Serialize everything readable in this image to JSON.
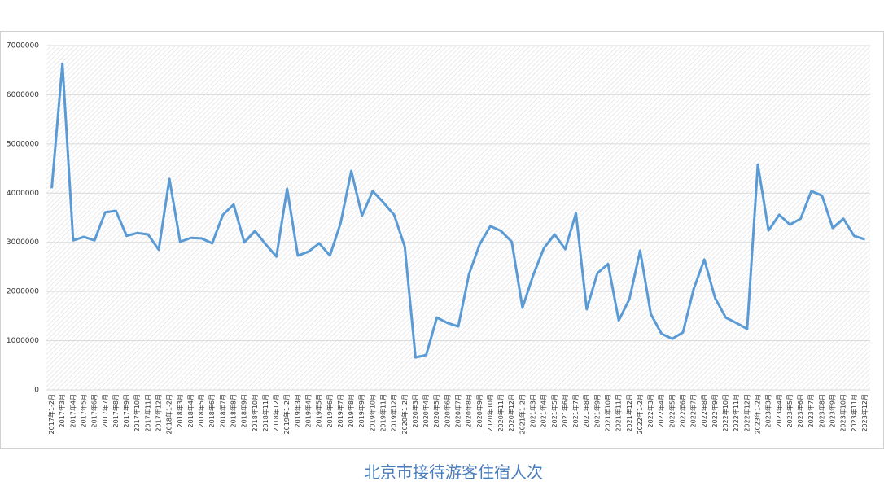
{
  "chart_data": {
    "type": "line",
    "title": "北京市接待游客住宿人次",
    "categories": [
      "2017年1-2月",
      "2017年3月",
      "2017年4月",
      "2017年5月",
      "2017年6月",
      "2017年7月",
      "2017年8月",
      "2017年9月",
      "2017年10月",
      "2017年11月",
      "2017年12月",
      "2018年1-2月",
      "2018年3月",
      "2018年4月",
      "2018年5月",
      "2018年6月",
      "2018年7月",
      "2018年8月",
      "2018年9月",
      "2018年10月",
      "2018年11月",
      "2018年12月",
      "2019年1-2月",
      "2019年3月",
      "2019年4月",
      "2019年5月",
      "2019年6月",
      "2019年7月",
      "2019年8月",
      "2019年9月",
      "2019年10月",
      "2019年11月",
      "2019年12月",
      "2020年1-2月",
      "2020年3月",
      "2020年4月",
      "2020年5月",
      "2020年6月",
      "2020年7月",
      "2020年8月",
      "2020年9月",
      "2020年10月",
      "2020年11月",
      "2020年12月",
      "2021年1-2月",
      "2021年3月",
      "2021年4月",
      "2021年5月",
      "2021年6月",
      "2021年7月",
      "2021年8月",
      "2021年9月",
      "2021年10月",
      "2021年11月",
      "2021年12月",
      "2022年1-2月",
      "2022年3月",
      "2022年4月",
      "2022年5月",
      "2022年6月",
      "2022年7月",
      "2022年8月",
      "2022年9月",
      "2022年10月",
      "2022年11月",
      "2022年12月",
      "2023年1-2月",
      "2023年3月",
      "2023年4月",
      "2023年5月",
      "2023年6月",
      "2023年7月",
      "2023年8月",
      "2023年9月",
      "2023年10月",
      "2023年11月",
      "2023年12月"
    ],
    "values": [
      4100000,
      6630000,
      3040000,
      3110000,
      3040000,
      3610000,
      3640000,
      3130000,
      3190000,
      3160000,
      2850000,
      4290000,
      3010000,
      3090000,
      3080000,
      2980000,
      3560000,
      3770000,
      3000000,
      3230000,
      2960000,
      2710000,
      4090000,
      2730000,
      2810000,
      2980000,
      2730000,
      3390000,
      4450000,
      3540000,
      4040000,
      3810000,
      3560000,
      2910000,
      660000,
      710000,
      1470000,
      1360000,
      1290000,
      2350000,
      2960000,
      3330000,
      3230000,
      3010000,
      1670000,
      2330000,
      2880000,
      3160000,
      2860000,
      3590000,
      1640000,
      2370000,
      2560000,
      1410000,
      1850000,
      2830000,
      1540000,
      1140000,
      1040000,
      1170000,
      2050000,
      2650000,
      1870000,
      1470000,
      1360000,
      1240000,
      4580000,
      3240000,
      3560000,
      3360000,
      3480000,
      4040000,
      3950000,
      3290000,
      3480000,
      3130000,
      3060000
    ],
    "color": "#5b9bd5",
    "ylim": [
      0,
      7000000
    ],
    "yticks": [
      0,
      1000000,
      2000000,
      3000000,
      4000000,
      5000000,
      6000000,
      7000000
    ],
    "grid": true
  }
}
